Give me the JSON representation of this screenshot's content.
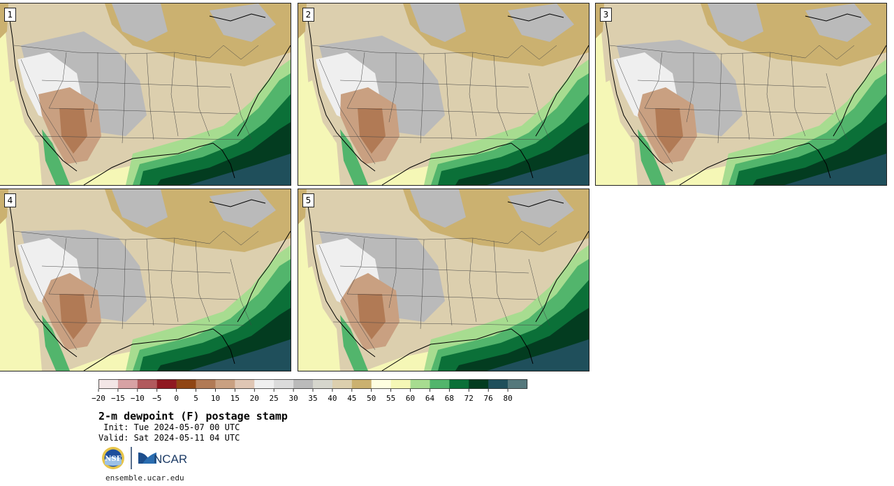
{
  "title": "2-m dewpoint (F) postage stamp",
  "init_text": " Init: Tue 2024-05-07 00 UTC",
  "valid_text": "Valid: Sat 2024-05-11 04 UTC",
  "footer": "ensemble.ucar.edu",
  "logos": {
    "nsf": "NSF",
    "ncar": "NCAR"
  },
  "panels": [
    {
      "label": "1"
    },
    {
      "label": "2"
    },
    {
      "label": "3"
    },
    {
      "label": "4"
    },
    {
      "label": "5"
    }
  ],
  "colorbar": {
    "ticks": [
      "-20",
      "-15",
      "-10",
      "-5",
      "0",
      "5",
      "10",
      "15",
      "20",
      "25",
      "30",
      "35",
      "40",
      "45",
      "50",
      "55",
      "60",
      "64",
      "68",
      "72",
      "76",
      "80"
    ],
    "colors": [
      "#f3e6e6",
      "#d7a2a4",
      "#b15a5d",
      "#8f1921",
      "#8f4514",
      "#b17a55",
      "#c9a081",
      "#dfc6b4",
      "#efefef",
      "#dbdbdb",
      "#bababa",
      "#d6d6cd",
      "#dccfae",
      "#cbb170",
      "#fefee0",
      "#f5f7b6",
      "#a7dc90",
      "#52b56c",
      "#0b7038",
      "#033c20",
      "#1f4f5b",
      "#55787c"
    ]
  }
}
